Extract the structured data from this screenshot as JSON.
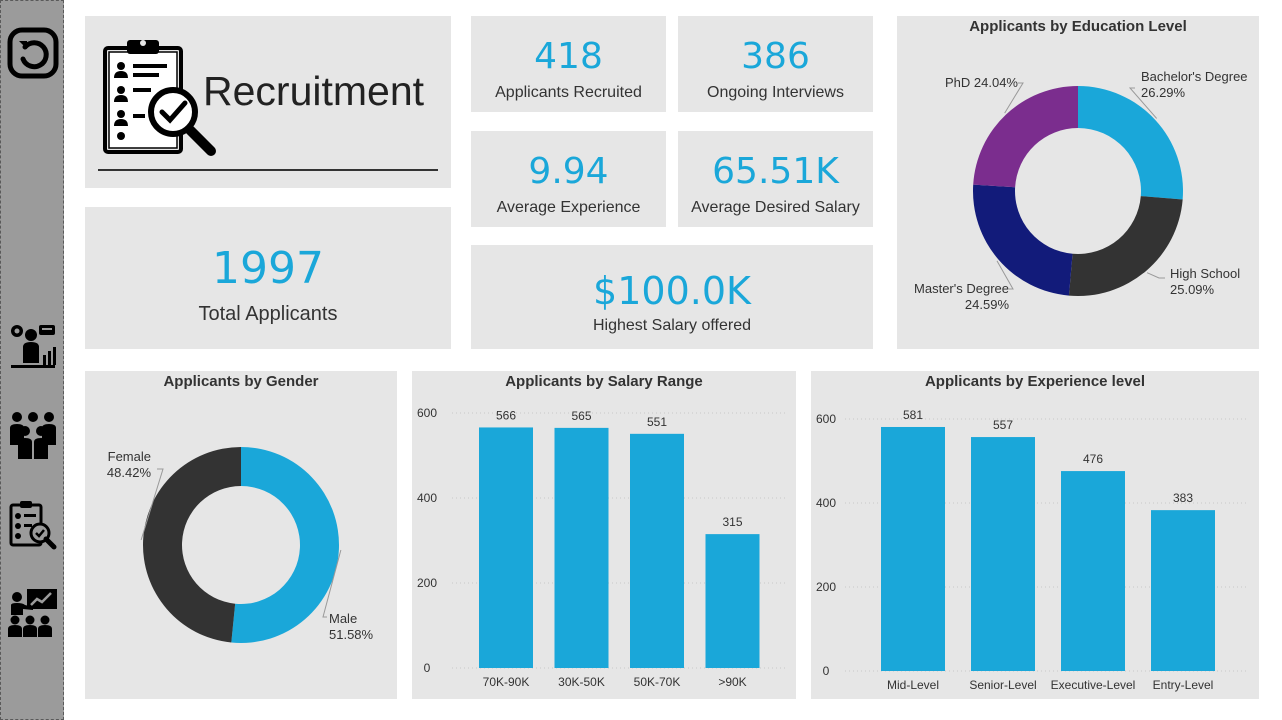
{
  "colors": {
    "accent": "#1aa7d9",
    "dark": "#333333",
    "navy": "#121b7a",
    "purple": "#7b2d8e",
    "panel": "#e6e6e6",
    "sidebar": "#9b9b9b"
  },
  "sidebar": {
    "icons": [
      "back-icon",
      "analyst-icon",
      "team-icon",
      "recruit-report-icon",
      "presentation-icon"
    ]
  },
  "header": {
    "title": "Recruitment",
    "logo_icon": "clipboard-magnifier-icon"
  },
  "kpis": {
    "recruited": {
      "value": "418",
      "label": "Applicants Recruited"
    },
    "interviews": {
      "value": "386",
      "label": "Ongoing Interviews"
    },
    "experience": {
      "value": "9.94",
      "label": "Average Experience"
    },
    "salary": {
      "value": "65.51K",
      "label": "Average Desired Salary"
    },
    "highest": {
      "value": "$100.0K",
      "label": "Highest Salary offered"
    },
    "total": {
      "value": "1997",
      "label": "Total Applicants"
    }
  },
  "chart_data": [
    {
      "type": "pie",
      "title": "Applicants by Education Level",
      "donut": true,
      "slices": [
        {
          "label": "Bachelor's Degree",
          "value": 26.29,
          "pct_text": "26.29%",
          "color": "#1aa7d9"
        },
        {
          "label": "High School",
          "value": 25.09,
          "pct_text": "25.09%",
          "color": "#333333"
        },
        {
          "label": "Master's Degree",
          "value": 24.59,
          "pct_text": "24.59%",
          "color": "#121b7a"
        },
        {
          "label": "PhD",
          "value": 24.04,
          "pct_text": "24.04%",
          "color": "#7b2d8e"
        }
      ]
    },
    {
      "type": "pie",
      "title": "Applicants by Gender",
      "donut": true,
      "slices": [
        {
          "label": "Male",
          "value": 51.58,
          "pct_text": "51.58%",
          "color": "#1aa7d9"
        },
        {
          "label": "Female",
          "value": 48.42,
          "pct_text": "48.42%",
          "color": "#333333"
        }
      ]
    },
    {
      "type": "bar",
      "title": "Applicants by Salary Range",
      "categories": [
        "70K-90K",
        "30K-50K",
        "50K-70K",
        ">90K"
      ],
      "values": [
        566,
        565,
        551,
        315
      ],
      "yticks": [
        0,
        200,
        400,
        600
      ],
      "ylim": [
        0,
        600
      ],
      "color": "#1aa7d9"
    },
    {
      "type": "bar",
      "title": "Applicants by Experience level",
      "categories": [
        "Mid-Level",
        "Senior-Level",
        "Executive-Level",
        "Entry-Level"
      ],
      "values": [
        581,
        557,
        476,
        383
      ],
      "yticks": [
        0,
        200,
        400,
        600
      ],
      "ylim": [
        0,
        600
      ],
      "color": "#1aa7d9"
    }
  ]
}
